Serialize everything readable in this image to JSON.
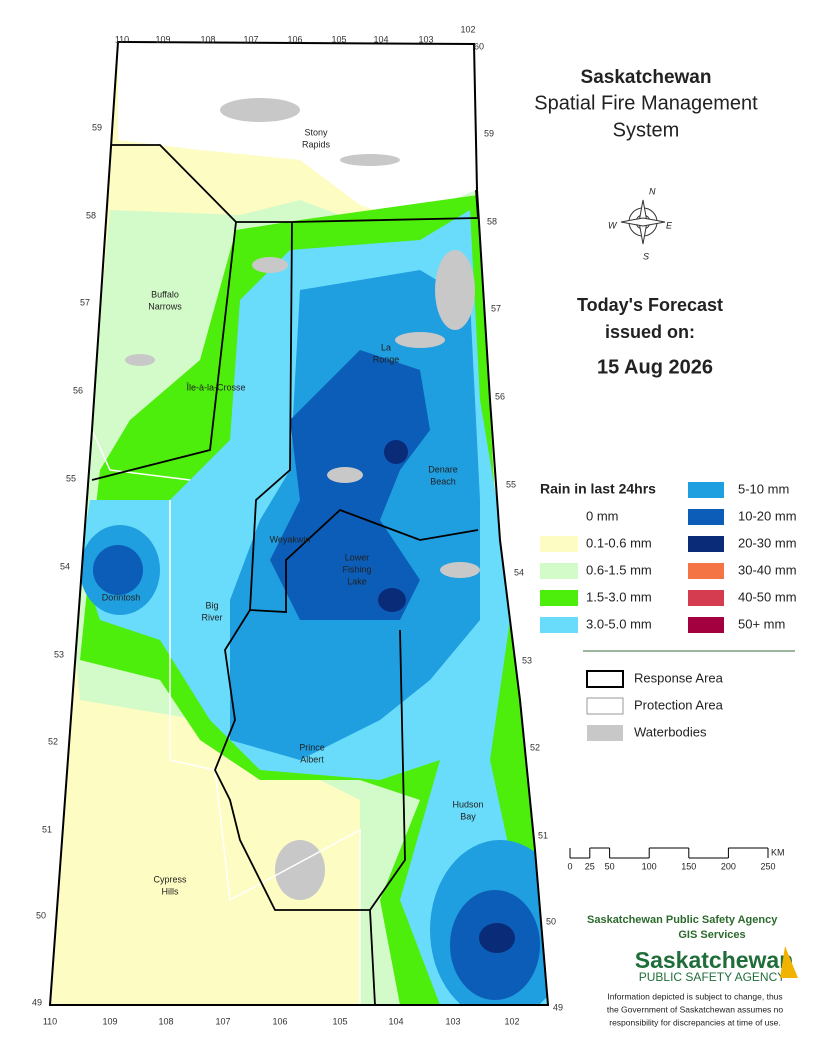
{
  "header": {
    "region": "Saskatchewan",
    "title_lines": [
      "Spatial Fire Management",
      "System"
    ]
  },
  "forecast": {
    "heading_lines": [
      "Today's Forecast",
      "issued on:"
    ],
    "date": "15 Aug 2026"
  },
  "compass": {
    "n": "N",
    "e": "E",
    "s": "S",
    "w": "W"
  },
  "legend": {
    "title": "Rain in last 24hrs",
    "items": [
      {
        "label": "0 mm",
        "color": "#ffffff"
      },
      {
        "label": "0.1-0.6 mm",
        "color": "#fdfcc2"
      },
      {
        "label": "0.6-1.5 mm",
        "color": "#d3fbc9"
      },
      {
        "label": "1.5-3.0 mm",
        "color": "#4ded0c"
      },
      {
        "label": "3.0-5.0 mm",
        "color": "#6adcfb"
      },
      {
        "label": "5-10 mm",
        "color": "#1f9ee0"
      },
      {
        "label": "10-20 mm",
        "color": "#0c5db7"
      },
      {
        "label": "20-30 mm",
        "color": "#0a2b78"
      },
      {
        "label": "30-40 mm",
        "color": "#f57446"
      },
      {
        "label": "40-50 mm",
        "color": "#d63c4f"
      },
      {
        "label": "50+ mm",
        "color": "#a3003f"
      }
    ]
  },
  "layers": [
    {
      "label": "Response Area"
    },
    {
      "label": "Protection Area"
    },
    {
      "label": "Waterbodies"
    }
  ],
  "scale": {
    "ticks": [
      0,
      25,
      50,
      100,
      150,
      200,
      250
    ],
    "unit": "KM"
  },
  "graticule": {
    "top": [
      110,
      109,
      108,
      107,
      106,
      105,
      104,
      103,
      102
    ],
    "top_corner": 60,
    "bottom": [
      110,
      109,
      108,
      107,
      106,
      105,
      104,
      103,
      102
    ],
    "bottom_corner": 49,
    "left": [
      59,
      58,
      57,
      56,
      55,
      54,
      53,
      52,
      51,
      50,
      49
    ],
    "right": [
      59,
      58,
      57,
      56,
      55,
      54,
      53,
      52,
      51,
      50,
      49
    ]
  },
  "places": [
    {
      "lines": [
        "Stony",
        "Rapids"
      ]
    },
    {
      "lines": [
        "Buffalo",
        "Narrows"
      ]
    },
    {
      "lines": [
        "La",
        "Ronge"
      ]
    },
    {
      "lines": [
        "Île-à-la-Crosse"
      ]
    },
    {
      "lines": [
        "Denare",
        "Beach"
      ]
    },
    {
      "lines": [
        "Weyakwin"
      ]
    },
    {
      "lines": [
        "Lower",
        "Fishing",
        "Lake"
      ]
    },
    {
      "lines": [
        "Dorintosh"
      ]
    },
    {
      "lines": [
        "Big",
        "River"
      ]
    },
    {
      "lines": [
        "Prince",
        "Albert"
      ]
    },
    {
      "lines": [
        "Hudson",
        "Bay"
      ]
    },
    {
      "lines": [
        "Cypress",
        "Hills"
      ]
    }
  ],
  "footer": {
    "agency": "Saskatchewan Public Safety Agency",
    "unit": "GIS  Services",
    "logo_lines": [
      "Saskatchewan",
      "PUBLIC SAFETY AGENCY"
    ],
    "disclaimer_lines": [
      "Information depicted is subject to change, thus",
      "the Government of Saskatchewan assumes no",
      "responsibility for discrepancies at time of use."
    ]
  }
}
